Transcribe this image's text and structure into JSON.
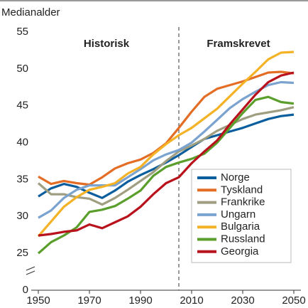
{
  "chart_data": {
    "type": "line",
    "title": "Medianalder",
    "annotations": [
      "Historisk",
      "Framskrevet"
    ],
    "divider": 2005,
    "x": [
      1950,
      1955,
      1960,
      1965,
      1970,
      1975,
      1980,
      1985,
      1990,
      1995,
      2000,
      2005,
      2010,
      2015,
      2020,
      2025,
      2030,
      2035,
      2040,
      2045,
      2050
    ],
    "xlim": [
      1950,
      2050
    ],
    "xticks": [
      1950,
      1970,
      1990,
      2010,
      2030,
      2050
    ],
    "ylim": [
      0,
      55
    ],
    "yticks": [
      0,
      25,
      30,
      35,
      40,
      45,
      50,
      55
    ],
    "y_break": [
      0,
      25
    ],
    "series": [
      {
        "name": "Norge",
        "color": "#0b5e9e",
        "values": [
          32.7,
          33.8,
          34.4,
          34.0,
          33.2,
          32.5,
          33.5,
          34.7,
          35.6,
          36.4,
          37.3,
          38.3,
          39.4,
          40.5,
          41.0,
          41.5,
          42.0,
          42.6,
          43.2,
          43.6,
          43.8
        ]
      },
      {
        "name": "Tyskland",
        "color": "#e36d25",
        "values": [
          35.4,
          34.4,
          34.8,
          34.5,
          34.3,
          35.3,
          36.5,
          37.2,
          37.7,
          38.6,
          39.9,
          42.0,
          44.2,
          46.2,
          47.3,
          47.8,
          48.3,
          48.9,
          49.5,
          49.6,
          49.4
        ]
      },
      {
        "name": "Frankrike",
        "color": "#a09e80",
        "values": [
          34.5,
          33.0,
          33.0,
          32.6,
          32.4,
          31.6,
          32.5,
          33.6,
          34.8,
          36.0,
          37.5,
          38.8,
          39.6,
          40.5,
          41.6,
          42.4,
          43.2,
          43.8,
          44.1,
          44.4,
          44.8
        ]
      },
      {
        "name": "Ungarn",
        "color": "#7ba3cf",
        "values": [
          29.8,
          30.8,
          32.5,
          33.6,
          34.2,
          34.2,
          34.2,
          35.3,
          36.4,
          37.6,
          38.4,
          39.0,
          40.0,
          41.5,
          43.1,
          44.7,
          45.9,
          46.9,
          47.8,
          48.2,
          48.1
        ]
      },
      {
        "name": "Bulgaria",
        "color": "#f4b226",
        "values": [
          27.3,
          29.3,
          31.3,
          32.6,
          33.6,
          34.0,
          34.5,
          35.8,
          36.7,
          38.4,
          39.8,
          41.0,
          42.0,
          43.3,
          44.6,
          46.3,
          48.0,
          49.6,
          51.3,
          52.2,
          52.3
        ]
      },
      {
        "name": "Russland",
        "color": "#5a9e2b",
        "values": [
          24.9,
          26.5,
          27.4,
          28.5,
          30.6,
          30.9,
          31.4,
          32.4,
          33.5,
          35.5,
          36.7,
          37.3,
          37.8,
          38.5,
          40.0,
          42.0,
          44.0,
          45.8,
          46.2,
          45.5,
          45.3
        ]
      },
      {
        "name": "Georgia",
        "color": "#b8131c",
        "values": [
          27.4,
          27.6,
          27.9,
          28.1,
          28.9,
          28.4,
          29.2,
          30.0,
          31.3,
          33.0,
          34.5,
          35.3,
          37.2,
          38.8,
          40.3,
          42.5,
          44.5,
          46.5,
          48.2,
          49.1,
          49.5
        ]
      }
    ]
  }
}
